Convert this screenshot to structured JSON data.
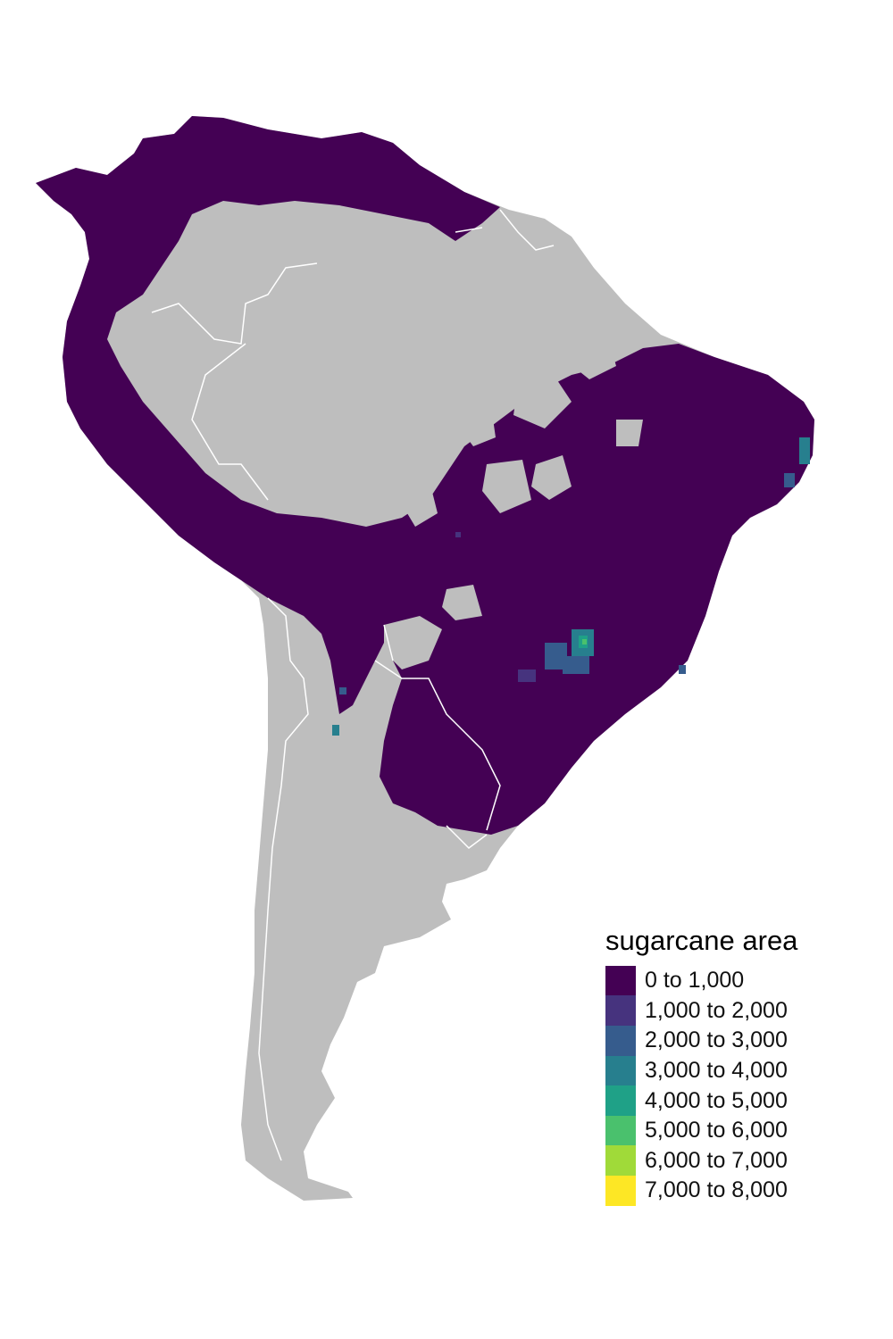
{
  "map": {
    "land_color": "#bebebe",
    "border_color": "#ffffff",
    "background_color": "#ffffff"
  },
  "legend": {
    "title": "sugarcane area",
    "classes": [
      {
        "label": "0 to 1,000",
        "color": "#440154"
      },
      {
        "label": "1,000 to 2,000",
        "color": "#46337e"
      },
      {
        "label": "2,000 to 3,000",
        "color": "#365c8d"
      },
      {
        "label": "3,000 to 4,000",
        "color": "#277f8e"
      },
      {
        "label": "4,000 to 5,000",
        "color": "#1fa187"
      },
      {
        "label": "5,000 to 6,000",
        "color": "#4ac16d"
      },
      {
        "label": "6,000 to 7,000",
        "color": "#a0da39"
      },
      {
        "label": "7,000 to 8,000",
        "color": "#fde725"
      }
    ]
  }
}
